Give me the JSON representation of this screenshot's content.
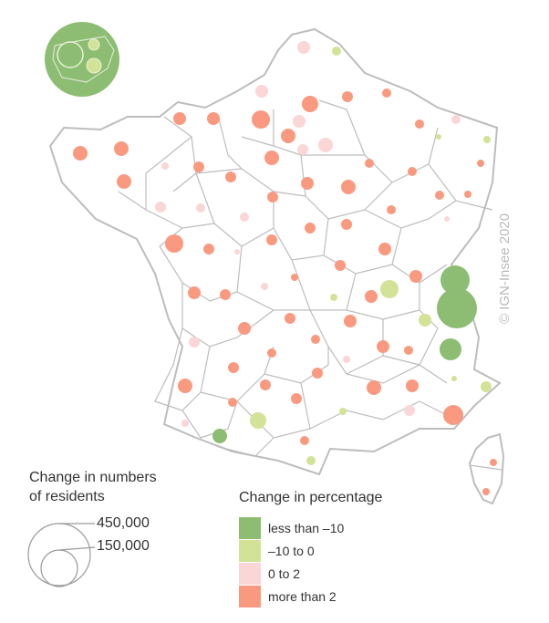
{
  "copyright": "© IGN-Insee 2020",
  "legend_size": {
    "title_line1": "Change in numbers",
    "title_line2": "of residents",
    "large_label": "450,000",
    "small_label": "150,000"
  },
  "legend_color": {
    "title": "Change in percentage",
    "items": [
      {
        "label": "less than –10",
        "color": "#8cbd72"
      },
      {
        "label": "–10 to 0",
        "color": "#d2e398"
      },
      {
        "label": "0 to 2",
        "color": "#fbd6d6"
      },
      {
        "label": "more than 2",
        "color": "#f99a80"
      }
    ]
  }
}
